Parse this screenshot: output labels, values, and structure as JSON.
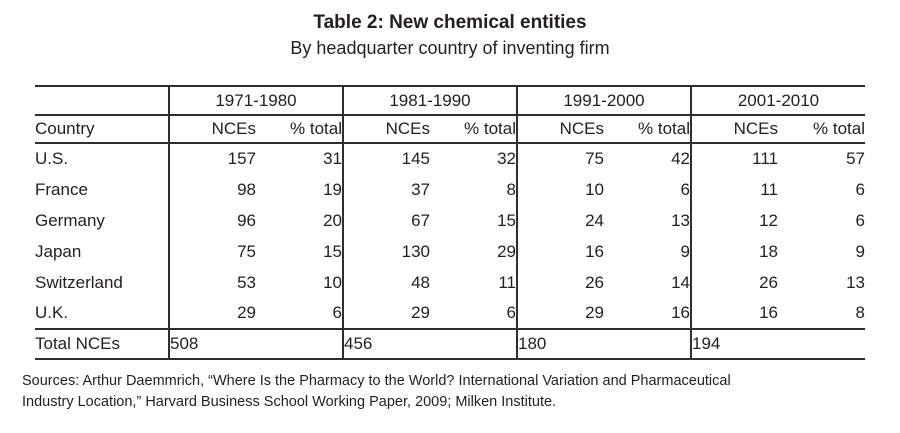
{
  "title": "Table 2: New chemical entities",
  "subtitle": "By headquarter country of inventing firm",
  "table": {
    "country_header": "Country",
    "period_headers": [
      "1971-1980",
      "1981-1990",
      "1991-2000",
      "2001-2010"
    ],
    "sub_headers": [
      "NCEs",
      "% total"
    ],
    "rows": [
      {
        "country": "U.S.",
        "values": [
          157,
          31,
          145,
          32,
          75,
          42,
          111,
          57
        ]
      },
      {
        "country": "France",
        "values": [
          98,
          19,
          37,
          8,
          10,
          6,
          11,
          6
        ]
      },
      {
        "country": "Germany",
        "values": [
          96,
          20,
          67,
          15,
          24,
          13,
          12,
          6
        ]
      },
      {
        "country": "Japan",
        "values": [
          75,
          15,
          130,
          29,
          16,
          9,
          18,
          9
        ]
      },
      {
        "country": "Switzerland",
        "values": [
          53,
          10,
          48,
          11,
          26,
          14,
          26,
          13
        ]
      },
      {
        "country": "U.K.",
        "values": [
          29,
          6,
          29,
          6,
          29,
          16,
          16,
          8
        ]
      }
    ],
    "total_row": {
      "label": "Total NCEs",
      "values": [
        508,
        456,
        180,
        194
      ]
    }
  },
  "source_lines": [
    "Sources: Arthur Daemmrich, “Where Is the Pharmacy to the World? International Variation and Pharmaceutical",
    "Industry Location,” Harvard Business School Working Paper, 2009; Milken Institute."
  ],
  "chart_data": {
    "type": "table",
    "title": "Table 2: New chemical entities",
    "subtitle": "By headquarter country of inventing firm",
    "column_groups": [
      "1971-1980",
      "1981-1990",
      "1991-2000",
      "2001-2010"
    ],
    "sub_columns": [
      "NCEs",
      "% total"
    ],
    "row_labels": [
      "U.S.",
      "France",
      "Germany",
      "Japan",
      "Switzerland",
      "U.K.",
      "Total NCEs"
    ],
    "values": [
      [
        157,
        31,
        145,
        32,
        75,
        42,
        111,
        57
      ],
      [
        98,
        19,
        37,
        8,
        10,
        6,
        11,
        6
      ],
      [
        96,
        20,
        67,
        15,
        24,
        13,
        12,
        6
      ],
      [
        75,
        15,
        130,
        29,
        16,
        9,
        18,
        9
      ],
      [
        53,
        10,
        48,
        11,
        26,
        14,
        26,
        13
      ],
      [
        29,
        6,
        29,
        6,
        29,
        16,
        16,
        8
      ],
      [
        508,
        null,
        456,
        null,
        180,
        null,
        194,
        null
      ]
    ]
  },
  "colors": {
    "text": "#231f20",
    "rule": "#2e2e2e",
    "background": "#ffffff"
  }
}
